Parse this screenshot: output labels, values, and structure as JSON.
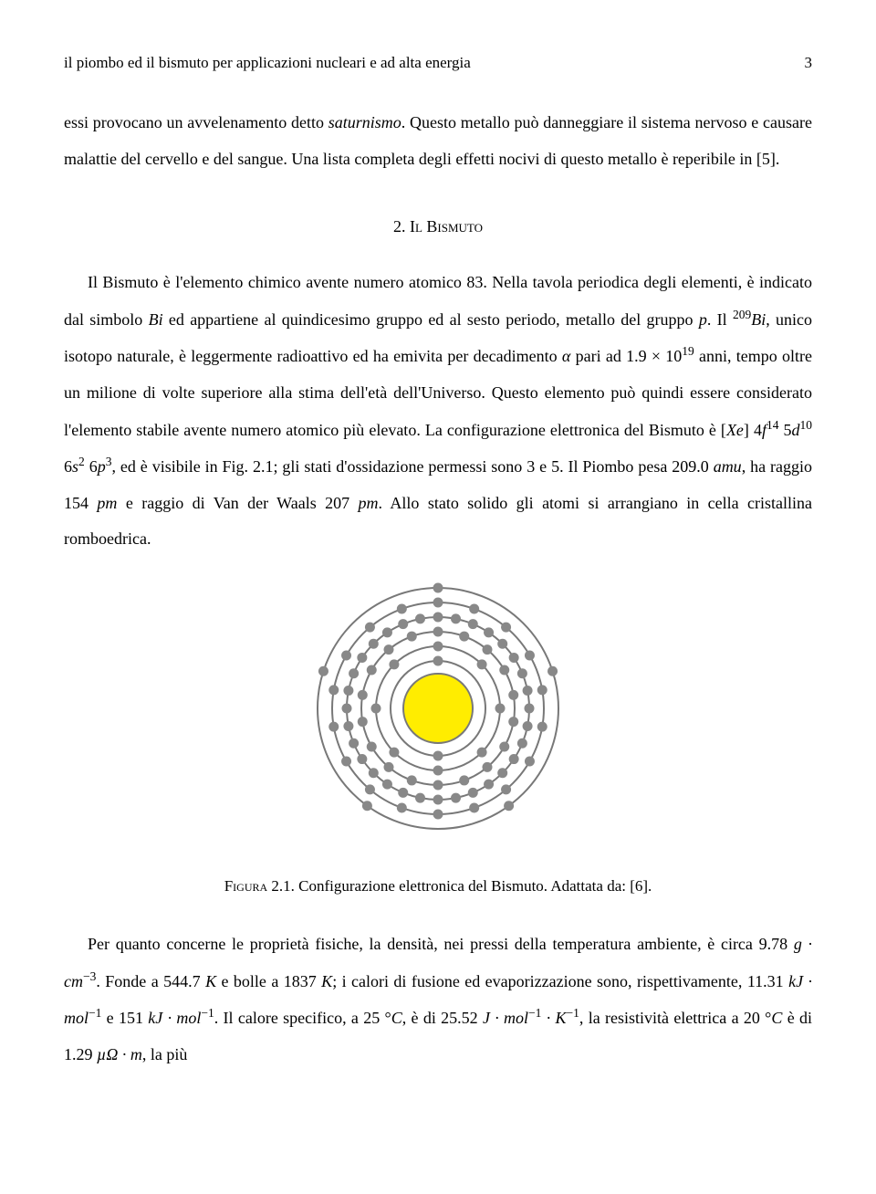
{
  "header": {
    "running_title": "il piombo ed il bismuto per applicazioni nucleari e ad alta energia",
    "page_number": "3"
  },
  "paragraph1": {
    "text_a": "essi provocano un avvelenamento detto ",
    "text_italic": "saturnismo",
    "text_b": ". Questo metallo può danneggiare il sistema nervoso e causare malattie del cervello e del sangue. Una lista completa degli effetti nocivi di questo metallo è reperibile in [5]."
  },
  "section": {
    "number": "2.",
    "title": "Il Bismuto"
  },
  "paragraph2": {
    "t1": "Il Bismuto è l'elemento chimico avente numero atomico 83. Nella tavola periodica degli elementi, è indicato dal simbolo ",
    "bi": "Bi",
    "t2": " ed appartiene al quindicesimo gruppo ed al sesto periodo, metallo del gruppo ",
    "p": "p",
    "t3": ". Il ",
    "iso": "209",
    "bi2": "Bi",
    "t4": ", unico isotopo naturale, è leggermente radioattivo ed ha emivita per decadimento ",
    "alpha": "α",
    "t5": " pari ad 1.9 × 10",
    "exp19": "19",
    "t6": " anni, tempo oltre un milione di volte superiore alla stima dell'età dell'Universo. Questo elemento può quindi essere considerato l'elemento stabile avente numero atomico più elevato. La configurazione elettronica del Bismuto è [",
    "xe": "Xe",
    "t7": "] 4",
    "f": "f",
    "e14": "14",
    "t8": " 5",
    "d": "d",
    "e10": "10",
    "t9": " 6",
    "s": "s",
    "e2": "2",
    "t10": " 6",
    "p2": "p",
    "e3": "3",
    "t11": ", ed è visibile in Fig. 2.1; gli stati d'ossidazione permessi sono 3 e 5. Il Piombo pesa 209.0 ",
    "amu": "amu",
    "t12": ", ha raggio 154 ",
    "pm1": "pm",
    "t13": " e raggio di Van der Waals 207 ",
    "pm2": "pm",
    "t14": ". Allo stato solido gli atomi si arrangiano in cella cristallina romboedrica."
  },
  "figure": {
    "label": "Figura 2.1.",
    "caption": "Configurazione elettronica del Bismuto. Adattata da: [6].",
    "diagram": {
      "nucleus_fill": "#ffed00",
      "nucleus_stroke": "#787878",
      "nucleus_r": 38,
      "shell_stroke": "#787878",
      "shell_stroke_width": 2,
      "electron_fill": "#888888",
      "electron_r": 5.5,
      "shells": [
        {
          "r": 52,
          "count": 2
        },
        {
          "r": 68,
          "count": 8
        },
        {
          "r": 84,
          "count": 18
        },
        {
          "r": 100,
          "count": 32
        },
        {
          "r": 116,
          "count": 18
        },
        {
          "r": 132,
          "count": 5
        }
      ],
      "svg_size": 290
    }
  },
  "paragraph3": {
    "t1": "Per quanto concerne le proprietà fisiche, la densità, nei pressi della temperatura ambiente, è circa 9.78 ",
    "g": "g · cm",
    "en3": "−3",
    "t2": ". Fonde a 544.7 ",
    "k1": "K",
    "t3": " e bolle a 1837 ",
    "k2": "K",
    "t4": "; i calori di fusione ed evaporizzazione sono, rispettivamente, 11.31 ",
    "kj1": "kJ · mol",
    "en1a": "−1",
    "t5": " e 151 ",
    "kj2": "kJ · mol",
    "en1b": "−1",
    "t6": ". Il calore specifico, a 25 °",
    "c1": "C",
    "t7": ", è di 25.52 ",
    "jmk": "J · mol",
    "en1c": "−1",
    "dotk": " · K",
    "en1d": "−1",
    "t8": ", la resistività elettrica a 20 °",
    "c2": "C",
    "t9": " è di 1.29 ",
    "mu": "µΩ · m",
    "t10": ", la più"
  }
}
